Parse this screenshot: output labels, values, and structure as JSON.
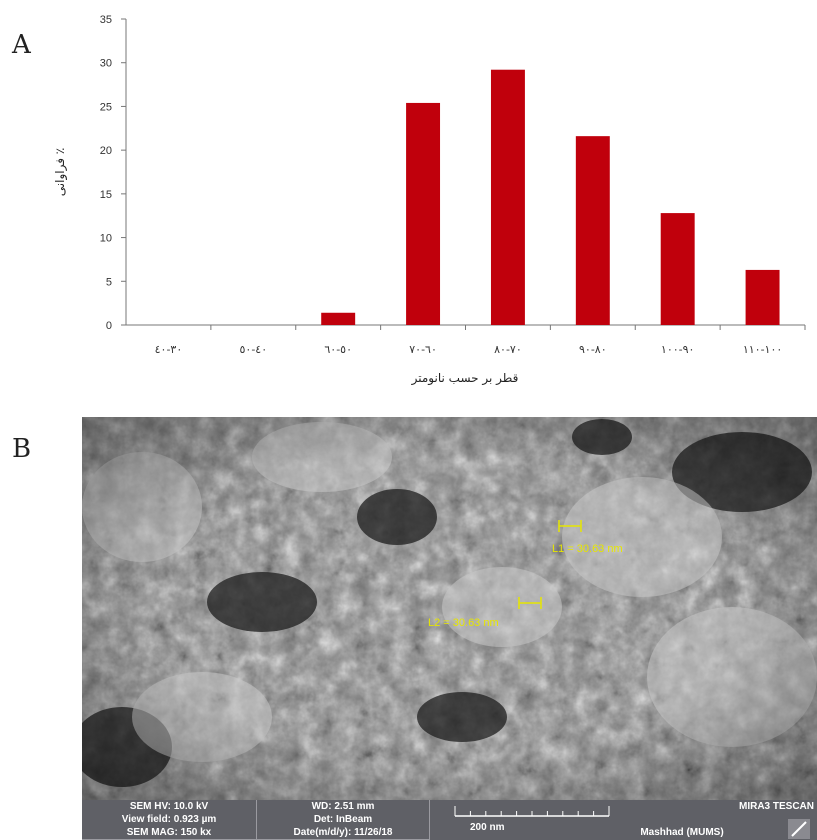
{
  "panel_a_label": "A",
  "panel_b_label": "B",
  "chart_data": {
    "type": "bar",
    "categories": [
      "٣٠-٤٠",
      "٤٠-٥٠",
      "٥٠-٦٠",
      "٦٠-٧٠",
      "٧٠-٨٠",
      "٨٠-٩٠",
      "٩٠-١٠٠",
      "١٠٠-١١٠"
    ],
    "values": [
      0,
      0,
      1.4,
      25.4,
      29.2,
      21.6,
      12.8,
      6.3
    ],
    "xlabel": "قطر بر حسب نانومتر",
    "ylabel": "فراوانی ٪",
    "ylim": [
      0,
      35
    ],
    "yticks": [
      0,
      5,
      10,
      15,
      20,
      25,
      30,
      35
    ],
    "bar_color": "#c0000c",
    "grid": false,
    "title": ""
  },
  "sem": {
    "measurement_1": "L1 = 30.63 nm",
    "measurement_2": "L2 = 30.63 nm",
    "hv": "SEM HV: 10.0 kV",
    "view_field": "View field: 0.923 µm",
    "mag": "SEM MAG: 150 kx",
    "wd": "WD: 2.51 mm",
    "det": "Det: InBeam",
    "date": "Date(m/d/y): 11/26/18",
    "scale_label": "200 nm",
    "instrument": "MIRA3 TESCAN",
    "location": "Mashhad (MUMS)",
    "measurement_color": "#e6e600"
  }
}
